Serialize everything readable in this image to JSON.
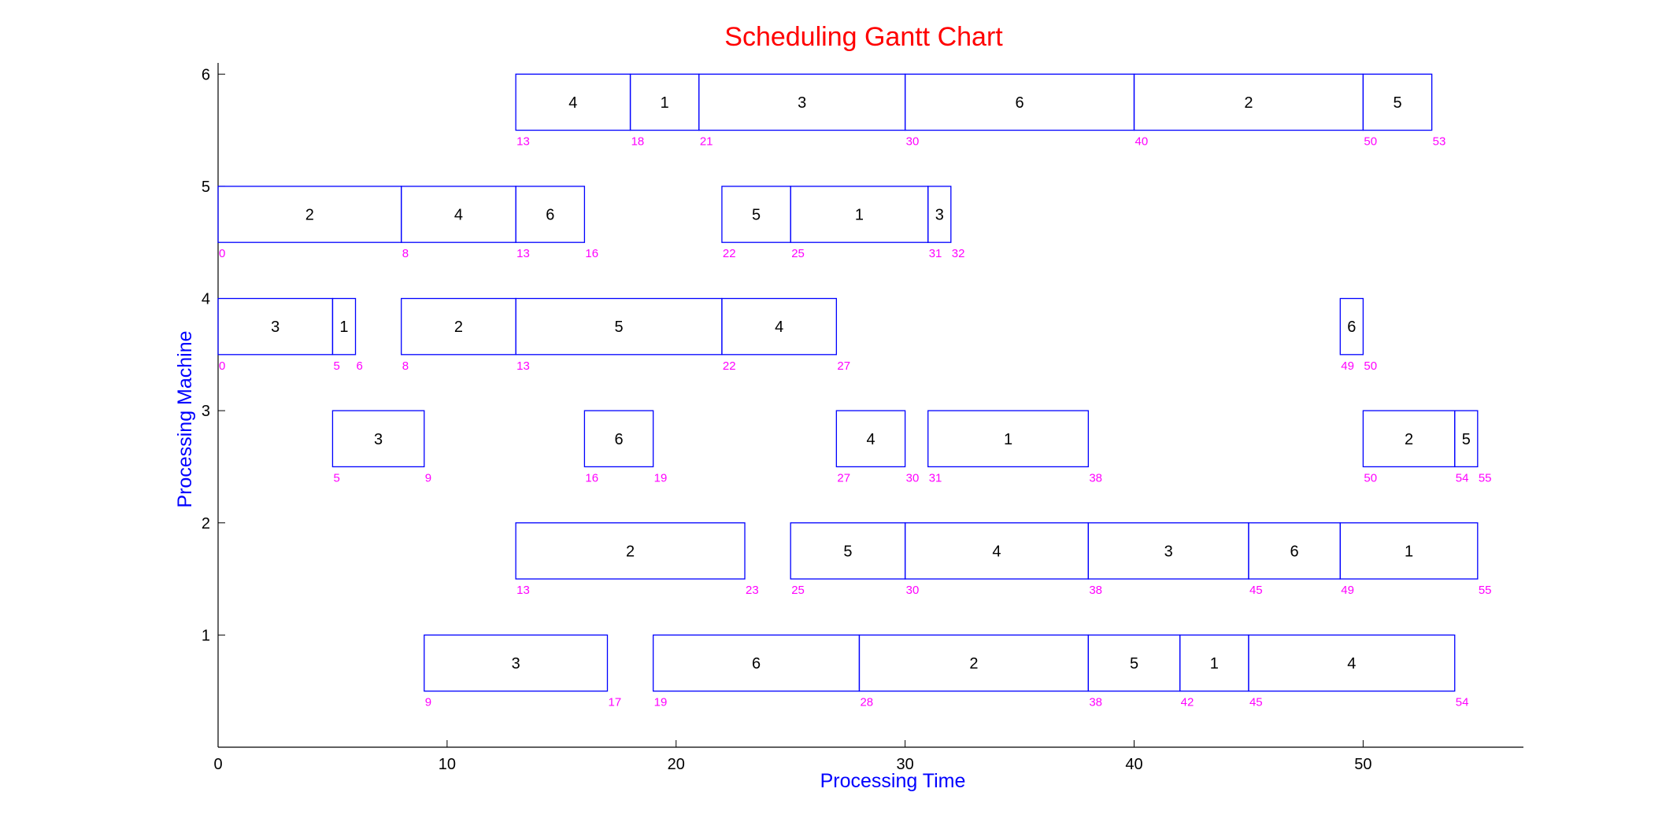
{
  "chart_data": {
    "type": "gantt",
    "title": "Scheduling Gantt Chart",
    "xlabel": "Processing Time",
    "ylabel": "Processing Machine",
    "xlim": [
      0,
      57
    ],
    "ylim": [
      0,
      6.1
    ],
    "xticks": [
      0,
      10,
      20,
      30,
      40,
      50
    ],
    "yticks": [
      1,
      2,
      3,
      4,
      5,
      6
    ],
    "grid": false,
    "colors": {
      "title": "#ff0000",
      "axis_label": "#0000ff",
      "bar_edge": "#0000ff",
      "time_label": "#ff00ff",
      "axis": "#000000"
    },
    "machines": [
      {
        "machine": 6,
        "tasks": [
          {
            "job": "4",
            "start": 13,
            "end": 18
          },
          {
            "job": "1",
            "start": 18,
            "end": 21
          },
          {
            "job": "3",
            "start": 21,
            "end": 30
          },
          {
            "job": "6",
            "start": 30,
            "end": 40
          },
          {
            "job": "2",
            "start": 40,
            "end": 50
          },
          {
            "job": "5",
            "start": 50,
            "end": 53
          }
        ],
        "time_labels": [
          "13",
          "18",
          "21",
          "30",
          "40",
          "50",
          "53"
        ]
      },
      {
        "machine": 5,
        "tasks": [
          {
            "job": "2",
            "start": 0,
            "end": 8
          },
          {
            "job": "4",
            "start": 8,
            "end": 13
          },
          {
            "job": "6",
            "start": 13,
            "end": 16
          },
          {
            "job": "5",
            "start": 22,
            "end": 25
          },
          {
            "job": "1",
            "start": 25,
            "end": 31
          },
          {
            "job": "3",
            "start": 31,
            "end": 32
          }
        ],
        "time_labels": [
          "0",
          "8",
          "13",
          "16",
          "22",
          "25",
          "31",
          "32"
        ]
      },
      {
        "machine": 4,
        "tasks": [
          {
            "job": "3",
            "start": 0,
            "end": 5
          },
          {
            "job": "1",
            "start": 5,
            "end": 6
          },
          {
            "job": "2",
            "start": 8,
            "end": 13
          },
          {
            "job": "5",
            "start": 13,
            "end": 22
          },
          {
            "job": "4",
            "start": 22,
            "end": 27
          },
          {
            "job": "6",
            "start": 49,
            "end": 50
          }
        ],
        "time_labels": [
          "0",
          "5",
          "6",
          "8",
          "13",
          "22",
          "27",
          "49",
          "50"
        ]
      },
      {
        "machine": 3,
        "tasks": [
          {
            "job": "3",
            "start": 5,
            "end": 9
          },
          {
            "job": "6",
            "start": 16,
            "end": 19
          },
          {
            "job": "4",
            "start": 27,
            "end": 30
          },
          {
            "job": "1",
            "start": 31,
            "end": 38
          },
          {
            "job": "2",
            "start": 50,
            "end": 54
          },
          {
            "job": "5",
            "start": 54,
            "end": 55
          }
        ],
        "time_labels": [
          "5",
          "9",
          "16",
          "19",
          "27",
          "30",
          "31",
          "38",
          "50",
          "54",
          "55"
        ]
      },
      {
        "machine": 2,
        "tasks": [
          {
            "job": "2",
            "start": 13,
            "end": 23
          },
          {
            "job": "5",
            "start": 25,
            "end": 30
          },
          {
            "job": "4",
            "start": 30,
            "end": 38
          },
          {
            "job": "3",
            "start": 38,
            "end": 45
          },
          {
            "job": "6",
            "start": 45,
            "end": 49
          },
          {
            "job": "1",
            "start": 49,
            "end": 55
          }
        ],
        "time_labels": [
          "13",
          "23",
          "25",
          "30",
          "38",
          "45",
          "49",
          "55"
        ]
      },
      {
        "machine": 1,
        "tasks": [
          {
            "job": "3",
            "start": 9,
            "end": 17
          },
          {
            "job": "6",
            "start": 19,
            "end": 28
          },
          {
            "job": "2",
            "start": 28,
            "end": 38
          },
          {
            "job": "5",
            "start": 38,
            "end": 42
          },
          {
            "job": "1",
            "start": 42,
            "end": 45
          },
          {
            "job": "4",
            "start": 45,
            "end": 54
          }
        ],
        "time_labels": [
          "9",
          "17",
          "19",
          "28",
          "38",
          "42",
          "45",
          "54"
        ]
      }
    ]
  }
}
